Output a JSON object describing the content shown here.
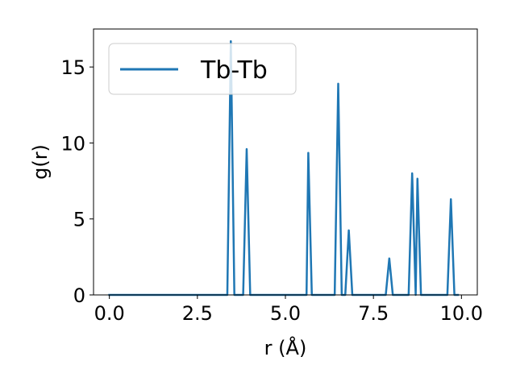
{
  "chart_data": {
    "type": "line",
    "xlabel": "r (Å)",
    "ylabel": "g(r)",
    "xlim": [
      -0.45,
      10.45
    ],
    "ylim": [
      0,
      17.5
    ],
    "x_ticks": [
      0.0,
      2.5,
      5.0,
      7.5,
      10.0
    ],
    "x_tick_labels": [
      "0.0",
      "2.5",
      "5.0",
      "7.5",
      "10.0"
    ],
    "y_ticks": [
      0,
      5,
      10,
      15
    ],
    "y_tick_labels": [
      "0",
      "5",
      "10",
      "15"
    ],
    "grid": false,
    "legend_position": "top-left",
    "series": [
      {
        "name": "Tb-Tb",
        "color": "#1f77b4",
        "points": [
          [
            0.0,
            0
          ],
          [
            3.35,
            0
          ],
          [
            3.45,
            16.7
          ],
          [
            3.55,
            0
          ],
          [
            3.8,
            0
          ],
          [
            3.9,
            9.6
          ],
          [
            4.0,
            0
          ],
          [
            5.6,
            0
          ],
          [
            5.65,
            9.35
          ],
          [
            5.75,
            0
          ],
          [
            6.4,
            0
          ],
          [
            6.5,
            13.9
          ],
          [
            6.6,
            0
          ],
          [
            6.7,
            0
          ],
          [
            6.8,
            4.25
          ],
          [
            6.9,
            0
          ],
          [
            7.85,
            0
          ],
          [
            7.95,
            2.4
          ],
          [
            8.05,
            0
          ],
          [
            8.5,
            0
          ],
          [
            8.6,
            8.0
          ],
          [
            8.7,
            0
          ],
          [
            8.75,
            7.65
          ],
          [
            8.85,
            0
          ],
          [
            9.6,
            0
          ],
          [
            9.7,
            6.3
          ],
          [
            9.8,
            0
          ],
          [
            9.9,
            0
          ]
        ]
      }
    ]
  }
}
